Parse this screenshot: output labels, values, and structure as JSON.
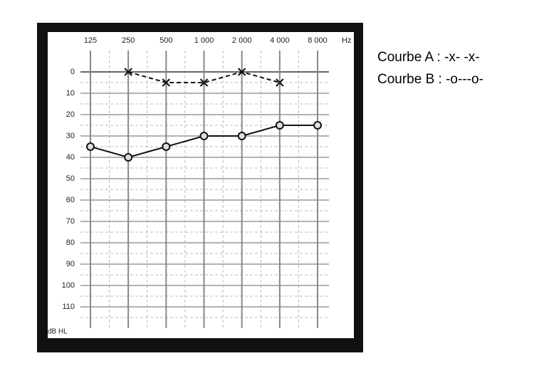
{
  "chart_data": {
    "type": "line",
    "categories": [
      "125",
      "250",
      "500",
      "1 000",
      "2 000",
      "4 000",
      "8 000"
    ],
    "x_label": "Hz",
    "y_label": "dB HL",
    "ylim": [
      -10,
      120
    ],
    "y_inverted": true,
    "yticks": [
      0,
      10,
      20,
      30,
      40,
      50,
      60,
      70,
      80,
      90,
      100,
      110
    ],
    "grid": true,
    "series": [
      {
        "values": [
          null,
          0,
          5,
          5,
          0,
          5,
          null
        ],
        "color": "#111",
        "marker": "x",
        "linestyle": "dashed"
      },
      {
        "values": [
          35,
          40,
          35,
          30,
          30,
          25,
          25
        ],
        "color": "#111",
        "marker": "o",
        "linestyle": "solid"
      }
    ],
    "legend_lines": [
      "Courbe A :  -x- -x-",
      "Courbe B : -o---o-"
    ]
  }
}
